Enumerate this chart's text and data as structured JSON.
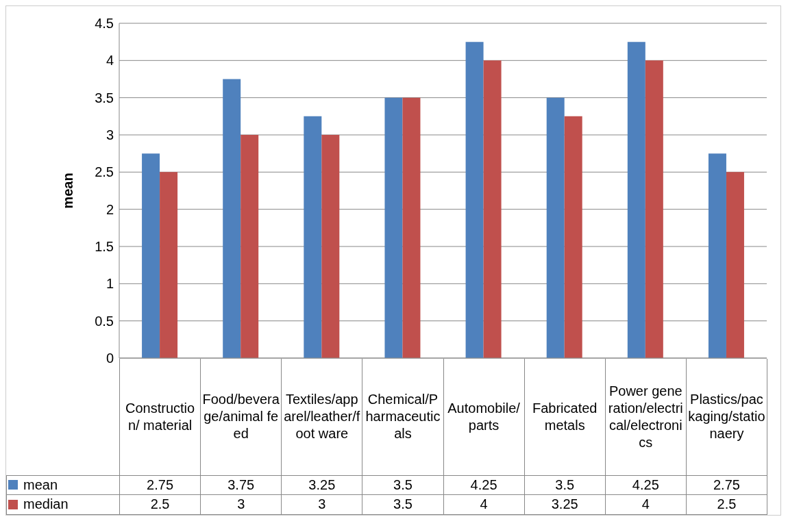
{
  "chart_data": {
    "type": "bar",
    "ylabel": "mean",
    "categories": [
      "Construction/ material",
      "Food/beverage/animal feed",
      "Textiles/apparel/leather/foot ware",
      "Chemical/Pharmaceuticals",
      "Automobile/parts",
      "Fabricated metals",
      "Power generation/electrical/electronics",
      "Plastics/packaging/stationaery"
    ],
    "series": [
      {
        "name": "mean",
        "color": "#4f81bd",
        "values": [
          2.75,
          3.75,
          3.25,
          3.5,
          4.25,
          3.5,
          4.25,
          2.75
        ]
      },
      {
        "name": "median",
        "color": "#c0504d",
        "values": [
          2.5,
          3,
          3,
          3.5,
          4,
          3.25,
          4,
          2.5
        ]
      }
    ],
    "ylim": [
      0,
      4.5
    ],
    "yticks": [
      0,
      0.5,
      1,
      1.5,
      2,
      2.5,
      3,
      3.5,
      4,
      4.5
    ],
    "grid": "y",
    "legend": "bottom",
    "data_labels": true
  }
}
